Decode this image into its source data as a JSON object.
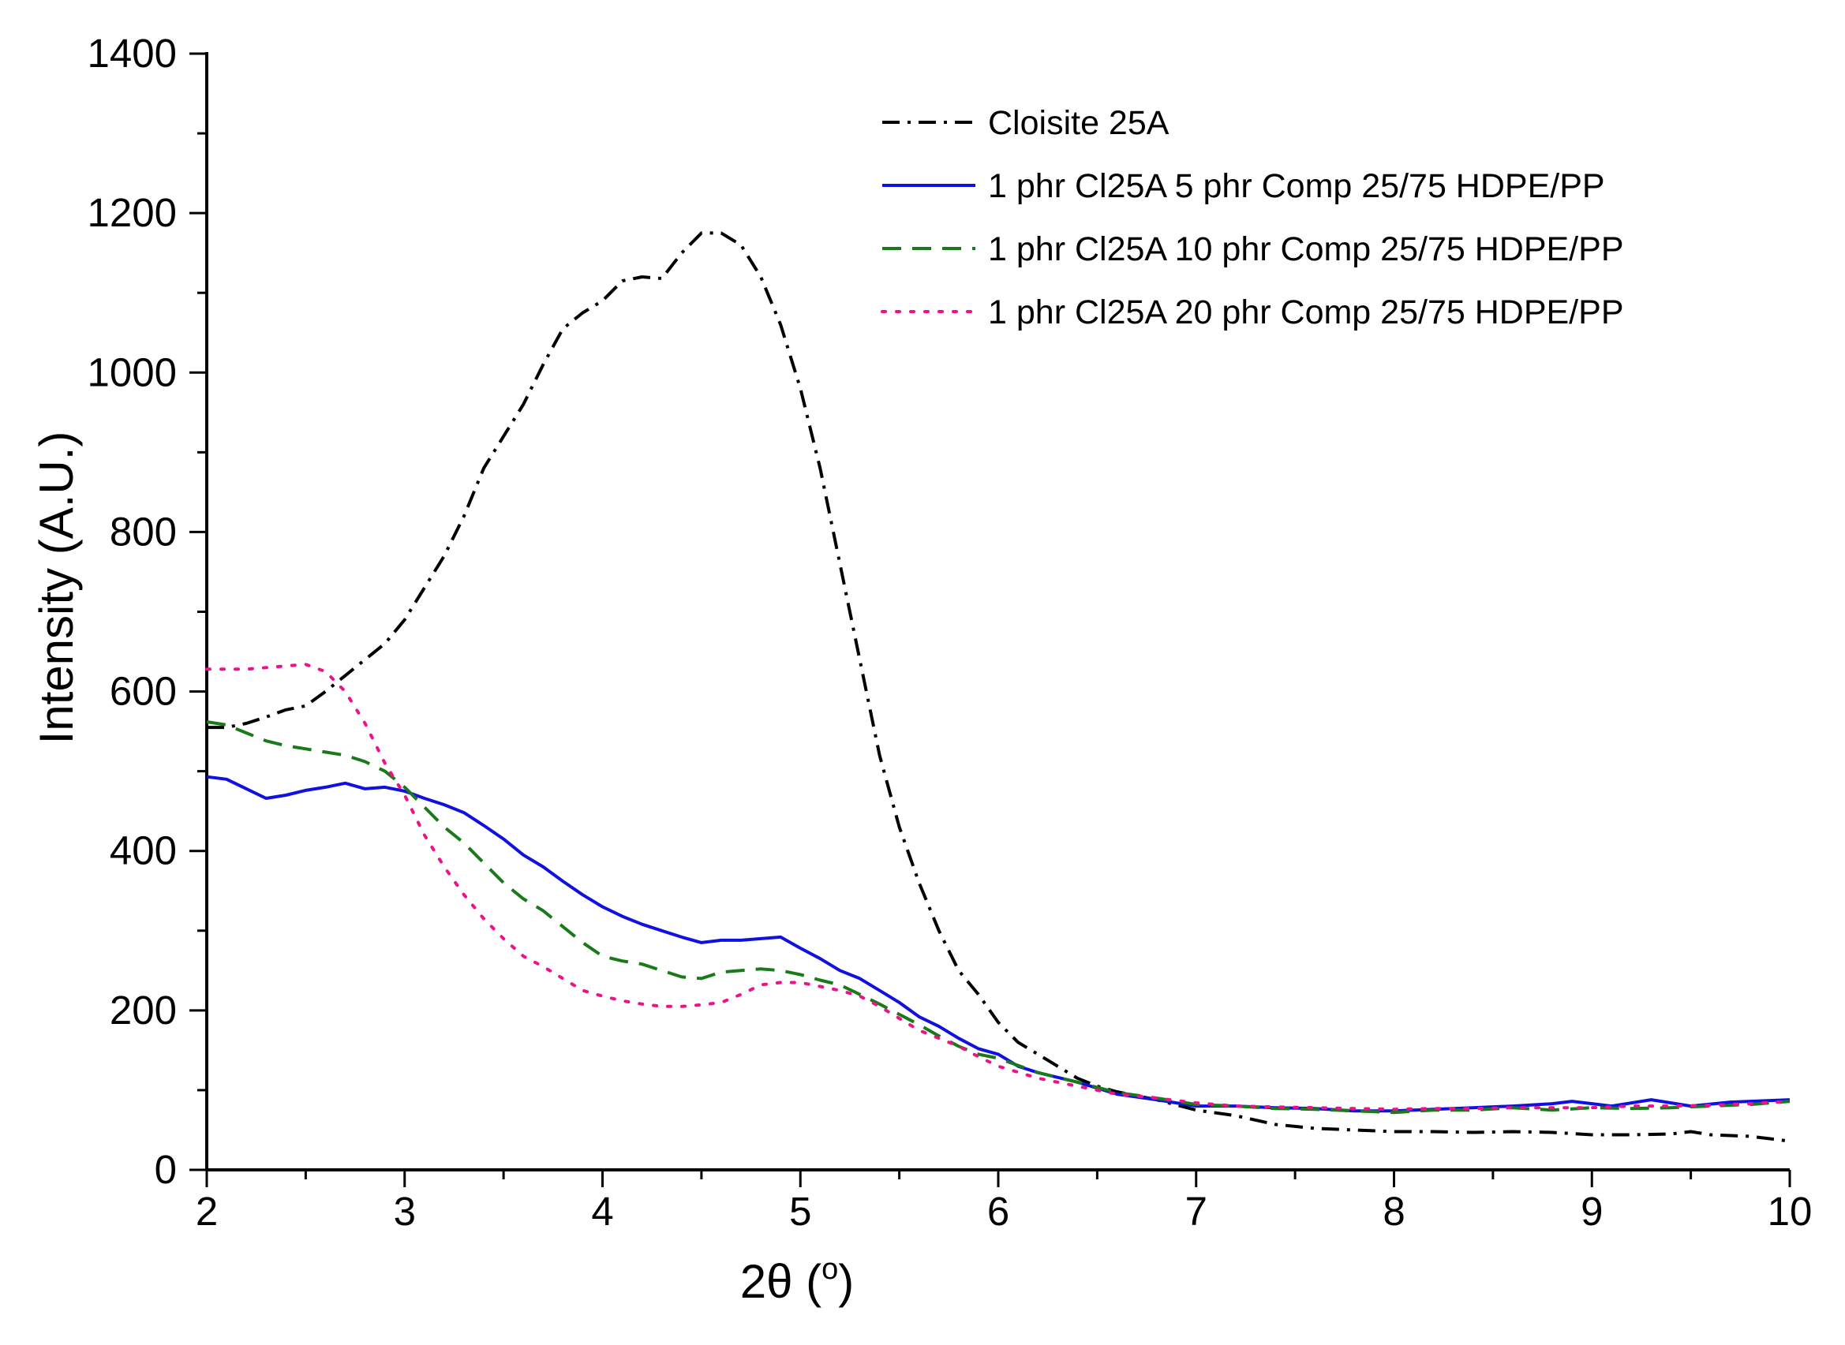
{
  "chart_data": {
    "type": "line",
    "title": "",
    "xlabel": "2θ (°)",
    "xlabel_parts": {
      "main": "2θ (",
      "sup": "o",
      "end": ")"
    },
    "ylabel": "Intensity (A.U.)",
    "xlim": [
      2,
      10
    ],
    "ylim": [
      0,
      1400
    ],
    "xticks": [
      2,
      3,
      4,
      5,
      6,
      7,
      8,
      9,
      10
    ],
    "yticks": [
      0,
      200,
      400,
      600,
      800,
      1000,
      1200,
      1400
    ],
    "grid": false,
    "legend_position": "top-right",
    "series": [
      {
        "name": "Cloisite 25A",
        "color": "#000000",
        "dash": "dashdot",
        "x": [
          2.0,
          2.1,
          2.2,
          2.3,
          2.4,
          2.5,
          2.6,
          2.7,
          2.8,
          2.9,
          3.0,
          3.1,
          3.2,
          3.3,
          3.4,
          3.5,
          3.6,
          3.7,
          3.8,
          3.9,
          4.0,
          4.1,
          4.2,
          4.3,
          4.4,
          4.5,
          4.6,
          4.7,
          4.8,
          4.9,
          5.0,
          5.1,
          5.2,
          5.3,
          5.4,
          5.5,
          5.6,
          5.7,
          5.8,
          5.9,
          6.0,
          6.1,
          6.2,
          6.3,
          6.4,
          6.5,
          6.6,
          6.8,
          7.0,
          7.2,
          7.4,
          7.6,
          7.8,
          8.0,
          8.2,
          8.4,
          8.6,
          8.8,
          9.0,
          9.2,
          9.4,
          9.5,
          9.6,
          9.8,
          10.0
        ],
        "y": [
          555,
          555,
          560,
          568,
          577,
          582,
          600,
          620,
          640,
          660,
          690,
          730,
          770,
          820,
          880,
          920,
          960,
          1010,
          1055,
          1075,
          1090,
          1115,
          1120,
          1118,
          1150,
          1175,
          1175,
          1160,
          1120,
          1060,
          980,
          880,
          760,
          640,
          520,
          430,
          360,
          300,
          250,
          220,
          185,
          160,
          145,
          130,
          115,
          105,
          98,
          88,
          75,
          68,
          57,
          52,
          50,
          48,
          48,
          47,
          48,
          47,
          44,
          44,
          45,
          48,
          44,
          42,
          36
        ]
      },
      {
        "name": "1 phr Cl25A 5 phr Comp 25/75 HDPE/PP",
        "color": "#1010e0",
        "dash": "solid",
        "x": [
          2.0,
          2.1,
          2.2,
          2.3,
          2.4,
          2.5,
          2.6,
          2.7,
          2.8,
          2.9,
          3.0,
          3.1,
          3.2,
          3.3,
          3.4,
          3.5,
          3.6,
          3.7,
          3.8,
          3.9,
          4.0,
          4.1,
          4.2,
          4.3,
          4.4,
          4.5,
          4.6,
          4.7,
          4.8,
          4.9,
          5.0,
          5.1,
          5.2,
          5.3,
          5.4,
          5.5,
          5.6,
          5.7,
          5.8,
          5.9,
          6.0,
          6.1,
          6.2,
          6.4,
          6.6,
          6.8,
          7.0,
          7.2,
          7.4,
          7.6,
          7.8,
          8.0,
          8.2,
          8.4,
          8.6,
          8.8,
          8.9,
          9.1,
          9.3,
          9.5,
          9.7,
          10.0
        ],
        "y": [
          493,
          490,
          478,
          466,
          470,
          476,
          480,
          485,
          478,
          480,
          475,
          466,
          458,
          448,
          432,
          415,
          395,
          380,
          362,
          345,
          330,
          318,
          308,
          300,
          292,
          285,
          288,
          288,
          290,
          292,
          278,
          265,
          250,
          240,
          225,
          210,
          192,
          180,
          165,
          152,
          145,
          130,
          122,
          110,
          95,
          88,
          80,
          80,
          78,
          77,
          74,
          74,
          76,
          78,
          80,
          83,
          86,
          80,
          88,
          80,
          85,
          88
        ]
      },
      {
        "name": "1 phr Cl25A 10 phr Comp 25/75 HDPE/PP",
        "color": "#1a7a1a",
        "dash": "dashed",
        "x": [
          2.0,
          2.1,
          2.2,
          2.3,
          2.4,
          2.5,
          2.6,
          2.7,
          2.8,
          2.9,
          3.0,
          3.1,
          3.2,
          3.3,
          3.4,
          3.5,
          3.6,
          3.7,
          3.8,
          3.9,
          4.0,
          4.1,
          4.2,
          4.3,
          4.4,
          4.5,
          4.6,
          4.7,
          4.8,
          4.9,
          5.0,
          5.1,
          5.2,
          5.3,
          5.4,
          5.5,
          5.6,
          5.7,
          5.8,
          5.9,
          6.0,
          6.2,
          6.4,
          6.6,
          6.8,
          7.0,
          7.2,
          7.4,
          7.6,
          7.8,
          8.0,
          8.2,
          8.4,
          8.6,
          8.8,
          9.0,
          9.2,
          9.4,
          9.6,
          9.8,
          10.0
        ],
        "y": [
          562,
          558,
          548,
          538,
          532,
          528,
          524,
          520,
          512,
          500,
          480,
          455,
          430,
          410,
          385,
          360,
          340,
          325,
          305,
          285,
          268,
          262,
          258,
          250,
          242,
          240,
          248,
          250,
          252,
          250,
          245,
          238,
          232,
          220,
          208,
          195,
          182,
          168,
          155,
          145,
          140,
          122,
          110,
          97,
          90,
          82,
          80,
          77,
          76,
          74,
          72,
          75,
          75,
          78,
          75,
          78,
          77,
          78,
          80,
          82,
          86
        ]
      },
      {
        "name": "1 phr Cl25A 20 phr Comp 25/75 HDPE/PP",
        "color": "#ee1188",
        "dash": "dotted",
        "x": [
          2.0,
          2.1,
          2.2,
          2.3,
          2.4,
          2.5,
          2.6,
          2.7,
          2.8,
          2.9,
          3.0,
          3.1,
          3.2,
          3.3,
          3.4,
          3.5,
          3.6,
          3.7,
          3.8,
          3.9,
          4.0,
          4.1,
          4.2,
          4.3,
          4.4,
          4.5,
          4.6,
          4.7,
          4.8,
          4.9,
          5.0,
          5.1,
          5.2,
          5.3,
          5.4,
          5.5,
          5.6,
          5.7,
          5.8,
          5.9,
          6.0,
          6.2,
          6.4,
          6.6,
          6.8,
          7.0,
          7.2,
          7.4,
          7.6,
          7.8,
          8.0,
          8.2,
          8.4,
          8.6,
          8.8,
          9.0,
          9.2,
          9.4,
          9.6,
          9.8,
          10.0
        ],
        "y": [
          628,
          628,
          628,
          630,
          632,
          634,
          625,
          600,
          560,
          510,
          470,
          420,
          380,
          345,
          315,
          290,
          268,
          255,
          240,
          225,
          218,
          212,
          208,
          205,
          205,
          207,
          210,
          220,
          232,
          235,
          235,
          230,
          225,
          218,
          205,
          190,
          175,
          165,
          155,
          142,
          130,
          115,
          105,
          95,
          90,
          84,
          80,
          79,
          78,
          77,
          76,
          77,
          77,
          78,
          78,
          78,
          80,
          80,
          81,
          83,
          86
        ]
      }
    ]
  }
}
